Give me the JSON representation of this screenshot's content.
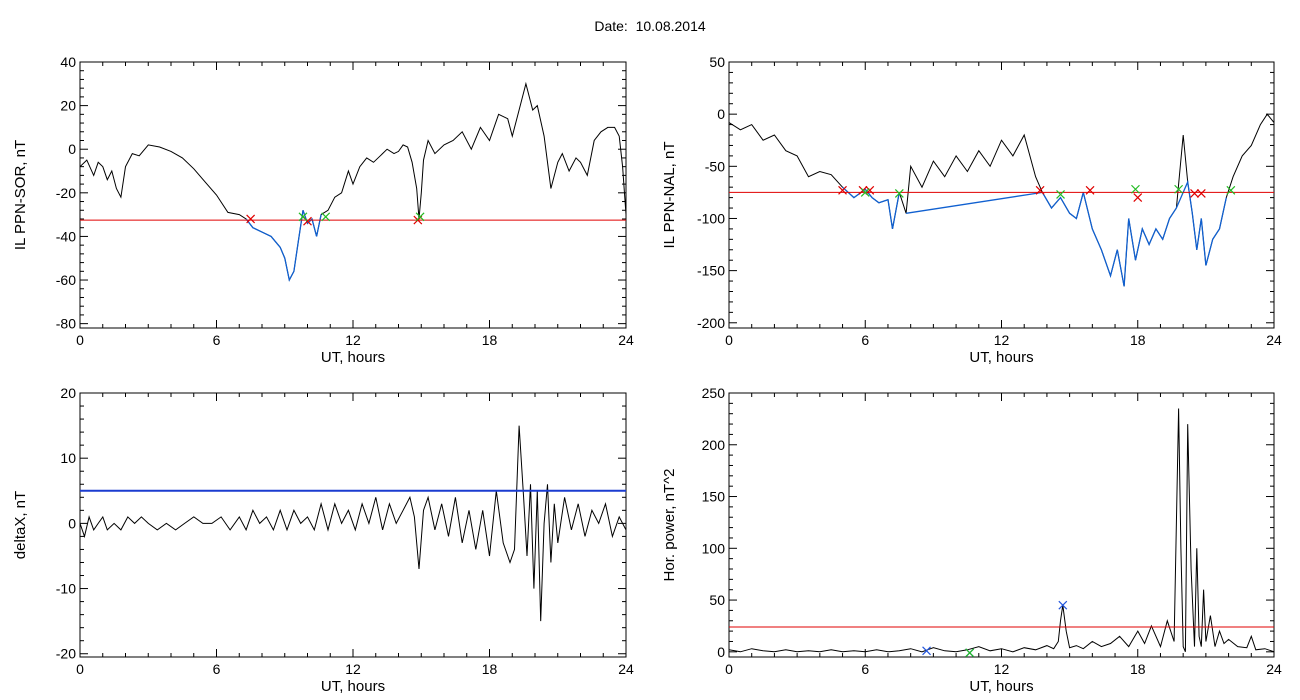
{
  "header": {
    "date_label": "Date:",
    "date_value": "10.08.2014"
  },
  "colors": {
    "background": "#ffffff",
    "axis": "#000000",
    "signal": "#000000",
    "highlight": "#1060d0",
    "threshold": "#e00000",
    "threshold_alt": "#1a3cd0",
    "marker_red": "#e00000",
    "marker_green": "#22bb22",
    "marker_blue": "#2255dd"
  },
  "chart_data": [
    {
      "type": "line",
      "xlabel": "UT, hours",
      "ylabel": "IL PPN-SOR, nT",
      "xlim": [
        0,
        24
      ],
      "ylim": [
        -82,
        40
      ],
      "xticks": [
        0,
        6,
        12,
        18,
        24
      ],
      "yticks": [
        40,
        20,
        0,
        -20,
        -40,
        -60,
        -80
      ],
      "threshold": -32.5,
      "series": [
        {
          "role": "signal",
          "x": [
            0,
            0.3,
            0.6,
            0.8,
            1,
            1.2,
            1.4,
            1.6,
            1.8,
            2,
            2.3,
            2.6,
            3,
            3.5,
            4,
            4.5,
            5,
            5.5,
            6,
            6.5,
            7,
            7.3,
            7.6,
            8,
            8.4,
            8.8,
            9,
            9.2,
            9.4,
            9.6,
            9.8,
            10,
            10.2,
            10.4,
            10.6,
            10.9,
            11.2,
            11.5,
            11.8,
            12,
            12.3,
            12.6,
            12.9,
            13.2,
            13.5,
            13.8,
            14,
            14.2,
            14.4,
            14.6,
            14.8,
            14.9,
            15,
            15.1,
            15.3,
            15.6,
            16,
            16.4,
            16.8,
            17.2,
            17.6,
            18,
            18.4,
            18.8,
            19,
            19.3,
            19.6,
            19.9,
            20.1,
            20.4,
            20.7,
            21,
            21.2,
            21.5,
            21.8,
            22,
            22.3,
            22.6,
            22.9,
            23.2,
            23.5,
            23.7,
            23.85,
            24
          ],
          "y": [
            -8,
            -5,
            -12,
            -6,
            -8,
            -14,
            -10,
            -18,
            -22,
            -8,
            -2,
            -3,
            2,
            1,
            -1,
            -4,
            -9,
            -15,
            -21,
            -29,
            -30,
            -32,
            -36,
            -38,
            -40,
            -45,
            -50,
            -60,
            -56,
            -42,
            -28,
            -34,
            -32,
            -40,
            -30,
            -28,
            -22,
            -20,
            -10,
            -16,
            -8,
            -4,
            -6,
            -3,
            0,
            -2,
            -1,
            2,
            1,
            -6,
            -18,
            -32,
            -20,
            -5,
            4,
            -2,
            2,
            4,
            8,
            0,
            10,
            4,
            16,
            14,
            6,
            18,
            30,
            18,
            20,
            6,
            -18,
            -6,
            -2,
            -10,
            -4,
            -6,
            -12,
            4,
            8,
            10,
            10,
            6,
            -8,
            -30
          ]
        },
        {
          "role": "highlight",
          "x": [
            7.3,
            7.6,
            8,
            8.4,
            8.8,
            9,
            9.2,
            9.4,
            9.6,
            9.8,
            10,
            10.2,
            10.4,
            10.6
          ],
          "y": [
            -32,
            -36,
            -38,
            -40,
            -45,
            -50,
            -60,
            -56,
            -42,
            -28,
            -34,
            -32,
            -40,
            -30
          ]
        }
      ],
      "markers": [
        {
          "x": 7.5,
          "y": -32,
          "color": "red"
        },
        {
          "x": 10.0,
          "y": -33,
          "color": "red"
        },
        {
          "x": 14.85,
          "y": -32.5,
          "color": "red"
        },
        {
          "x": 9.8,
          "y": -31,
          "color": "green"
        },
        {
          "x": 10.8,
          "y": -31,
          "color": "green"
        },
        {
          "x": 14.95,
          "y": -31,
          "color": "green"
        }
      ]
    },
    {
      "type": "line",
      "xlabel": "UT, hours",
      "ylabel": "IL PPN-NAL, nT",
      "xlim": [
        0,
        24
      ],
      "ylim": [
        -205,
        50
      ],
      "xticks": [
        0,
        6,
        12,
        18,
        24
      ],
      "yticks": [
        50,
        0,
        -50,
        -100,
        -150,
        -200
      ],
      "threshold": -75,
      "series": [
        {
          "role": "signal",
          "x": [
            0,
            0.5,
            1,
            1.5,
            2,
            2.5,
            3,
            3.5,
            4,
            4.5,
            5,
            5.5,
            6,
            6.3,
            6.6,
            7,
            7.2,
            7.5,
            7.8,
            8,
            8.5,
            9,
            9.5,
            10,
            10.5,
            11,
            11.5,
            12,
            12.5,
            13,
            13.5,
            13.8,
            14.2,
            14.6,
            15,
            15.3,
            15.6,
            16,
            16.4,
            16.8,
            17.1,
            17.4,
            17.6,
            17.9,
            18.2,
            18.5,
            18.8,
            19.1,
            19.4,
            19.7,
            20,
            20.2,
            20.4,
            20.6,
            20.8,
            21,
            21.3,
            21.6,
            21.9,
            22.2,
            22.6,
            23,
            23.4,
            23.7,
            24
          ],
          "y": [
            -8,
            -15,
            -10,
            -25,
            -20,
            -35,
            -40,
            -60,
            -55,
            -58,
            -70,
            -80,
            -72,
            -80,
            -85,
            -82,
            -110,
            -75,
            -95,
            -50,
            -70,
            -45,
            -60,
            -40,
            -55,
            -35,
            -50,
            -25,
            -40,
            -20,
            -60,
            -75,
            -90,
            -80,
            -95,
            -100,
            -75,
            -110,
            -130,
            -155,
            -130,
            -165,
            -100,
            -140,
            -110,
            -125,
            -110,
            -120,
            -100,
            -90,
            -20,
            -65,
            -95,
            -130,
            -100,
            -145,
            -120,
            -110,
            -80,
            -60,
            -40,
            -30,
            -10,
            0,
            -8
          ]
        },
        {
          "role": "highlight",
          "x": [
            5,
            5.5,
            6,
            6.3,
            6.6,
            7,
            7.2,
            7.5,
            7.8,
            13.8,
            14.2,
            14.6,
            15,
            15.3,
            15.6,
            16,
            16.4,
            16.8,
            17.1,
            17.4,
            17.6,
            17.9,
            18.2,
            18.5,
            18.8,
            19.1,
            19.4,
            19.7,
            20.2,
            20.4,
            20.6,
            20.8,
            21,
            21.3,
            21.6,
            21.9
          ],
          "y": [
            -70,
            -80,
            -72,
            -80,
            -85,
            -82,
            -110,
            -75,
            -95,
            -75,
            -90,
            -80,
            -95,
            -100,
            -75,
            -110,
            -130,
            -155,
            -130,
            -165,
            -100,
            -140,
            -110,
            -125,
            -110,
            -120,
            -100,
            -90,
            -65,
            -95,
            -130,
            -100,
            -145,
            -120,
            -110,
            -80
          ],
          "breaks": [
            8
          ]
        }
      ],
      "markers": [
        {
          "x": 5.0,
          "y": -73,
          "color": "red"
        },
        {
          "x": 5.9,
          "y": -73,
          "color": "red"
        },
        {
          "x": 6.2,
          "y": -73,
          "color": "red"
        },
        {
          "x": 13.7,
          "y": -73,
          "color": "red"
        },
        {
          "x": 15.9,
          "y": -73,
          "color": "red"
        },
        {
          "x": 18.0,
          "y": -80,
          "color": "red"
        },
        {
          "x": 20.5,
          "y": -76,
          "color": "red"
        },
        {
          "x": 20.8,
          "y": -76,
          "color": "red"
        },
        {
          "x": 6.0,
          "y": -75,
          "color": "green"
        },
        {
          "x": 7.5,
          "y": -76,
          "color": "green"
        },
        {
          "x": 14.6,
          "y": -77,
          "color": "green"
        },
        {
          "x": 17.9,
          "y": -72,
          "color": "green"
        },
        {
          "x": 19.8,
          "y": -72,
          "color": "green"
        },
        {
          "x": 22.1,
          "y": -73,
          "color": "green"
        }
      ]
    },
    {
      "type": "line",
      "xlabel": "UT, hours",
      "ylabel": "deltaX, nT",
      "xlim": [
        0,
        24
      ],
      "ylim": [
        -20.5,
        20
      ],
      "xticks": [
        0,
        6,
        12,
        18,
        24
      ],
      "yticks": [
        20,
        10,
        0,
        -10,
        -20
      ],
      "threshold": 5,
      "threshold_color": "blue",
      "series": [
        {
          "role": "signal",
          "x": [
            0,
            0.2,
            0.4,
            0.6,
            0.8,
            1,
            1.2,
            1.5,
            1.8,
            2.1,
            2.4,
            2.7,
            3,
            3.4,
            3.8,
            4.2,
            4.6,
            5,
            5.4,
            5.8,
            6.2,
            6.6,
            7,
            7.3,
            7.6,
            7.9,
            8.2,
            8.5,
            8.8,
            9.1,
            9.4,
            9.7,
            10,
            10.3,
            10.6,
            10.9,
            11.2,
            11.5,
            11.8,
            12.1,
            12.4,
            12.7,
            13,
            13.3,
            13.6,
            13.9,
            14.2,
            14.5,
            14.7,
            14.9,
            15.1,
            15.3,
            15.6,
            15.9,
            16.2,
            16.5,
            16.8,
            17.1,
            17.4,
            17.7,
            18,
            18.3,
            18.6,
            18.9,
            19.1,
            19.3,
            19.5,
            19.65,
            19.8,
            19.95,
            20.1,
            20.25,
            20.4,
            20.55,
            20.7,
            20.85,
            21,
            21.3,
            21.6,
            21.9,
            22.2,
            22.5,
            22.8,
            23.1,
            23.4,
            23.7,
            24
          ],
          "y": [
            0,
            -2,
            1,
            -1,
            0,
            1,
            -1,
            0,
            -1,
            1,
            0,
            1,
            0,
            -1,
            0,
            -1,
            0,
            1,
            0,
            0,
            1,
            -1,
            1,
            -1,
            2,
            0,
            1,
            -1,
            2,
            -1,
            2,
            0,
            1,
            -1,
            3,
            -1,
            3,
            0,
            2,
            -1,
            3,
            0,
            4,
            -1,
            3,
            0,
            2,
            4,
            1,
            -7,
            2,
            4,
            -1,
            3,
            -2,
            4,
            -3,
            2,
            -4,
            2,
            -5,
            5,
            -3,
            -6,
            -4,
            15,
            4,
            -5,
            6,
            -10,
            5,
            -15,
            0,
            6,
            -6,
            3,
            -3,
            4,
            -1,
            3,
            -2,
            2,
            0,
            3,
            -2,
            1,
            -1
          ]
        }
      ]
    },
    {
      "type": "line",
      "xlabel": "UT, hours",
      "ylabel": "Hor. power, nT^2",
      "xlim": [
        0,
        24
      ],
      "ylim": [
        -5,
        250
      ],
      "xticks": [
        0,
        6,
        12,
        18,
        24
      ],
      "yticks": [
        250,
        200,
        150,
        100,
        50,
        0
      ],
      "threshold": 24,
      "series": [
        {
          "role": "signal",
          "x": [
            0,
            0.5,
            1,
            1.5,
            2,
            2.5,
            3,
            3.5,
            4,
            4.5,
            5,
            5.5,
            6,
            6.5,
            7,
            7.5,
            8,
            8.5,
            9,
            9.5,
            10,
            10.5,
            11,
            11.5,
            12,
            12.5,
            13,
            13.5,
            14,
            14.3,
            14.5,
            14.6,
            14.7,
            14.85,
            15,
            15.3,
            15.6,
            16,
            16.4,
            16.8,
            17.2,
            17.6,
            18,
            18.3,
            18.6,
            19,
            19.3,
            19.6,
            19.8,
            19.9,
            20,
            20.1,
            20.2,
            20.35,
            20.5,
            20.6,
            20.7,
            20.8,
            20.9,
            21,
            21.2,
            21.4,
            21.6,
            21.8,
            22,
            22.4,
            22.8,
            23,
            23.2,
            23.6,
            24
          ],
          "y": [
            2,
            0,
            3,
            1,
            0,
            2,
            0,
            1,
            0,
            2,
            0,
            1,
            0,
            2,
            0,
            1,
            3,
            0,
            4,
            1,
            0,
            2,
            5,
            1,
            3,
            0,
            4,
            2,
            6,
            3,
            10,
            30,
            45,
            20,
            4,
            6,
            3,
            10,
            5,
            8,
            15,
            5,
            20,
            8,
            25,
            5,
            30,
            10,
            235,
            100,
            5,
            0,
            220,
            80,
            5,
            100,
            15,
            5,
            60,
            10,
            35,
            5,
            20,
            8,
            12,
            5,
            4,
            15,
            2,
            3,
            0
          ]
        }
      ],
      "markers": [
        {
          "x": 14.7,
          "y": 45,
          "color": "blue"
        },
        {
          "x": 8.7,
          "y": 1,
          "color": "blue"
        },
        {
          "x": 10.6,
          "y": -1,
          "color": "blue"
        },
        {
          "x": 10.6,
          "y": -1,
          "color": "green"
        }
      ]
    }
  ]
}
